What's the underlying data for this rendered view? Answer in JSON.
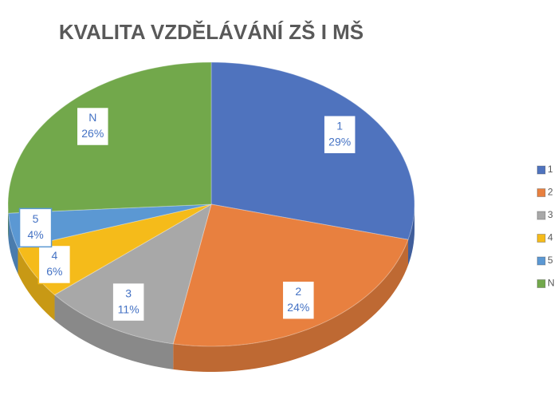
{
  "chart_data": {
    "type": "pie",
    "title": "KVALITA VZDĚLÁVÁNÍ ZŠ I MŠ",
    "categories": [
      "1",
      "2",
      "3",
      "4",
      "5",
      "N"
    ],
    "values": [
      29,
      24,
      11,
      6,
      4,
      26
    ],
    "value_labels": [
      "29%",
      "24%",
      "11%",
      "6%",
      "4%",
      "26%"
    ],
    "colors": [
      "#4f73be",
      "#e8803f",
      "#a8a8a8",
      "#f5bb1a",
      "#5b98d3",
      "#72a84b"
    ],
    "legend": "right"
  }
}
